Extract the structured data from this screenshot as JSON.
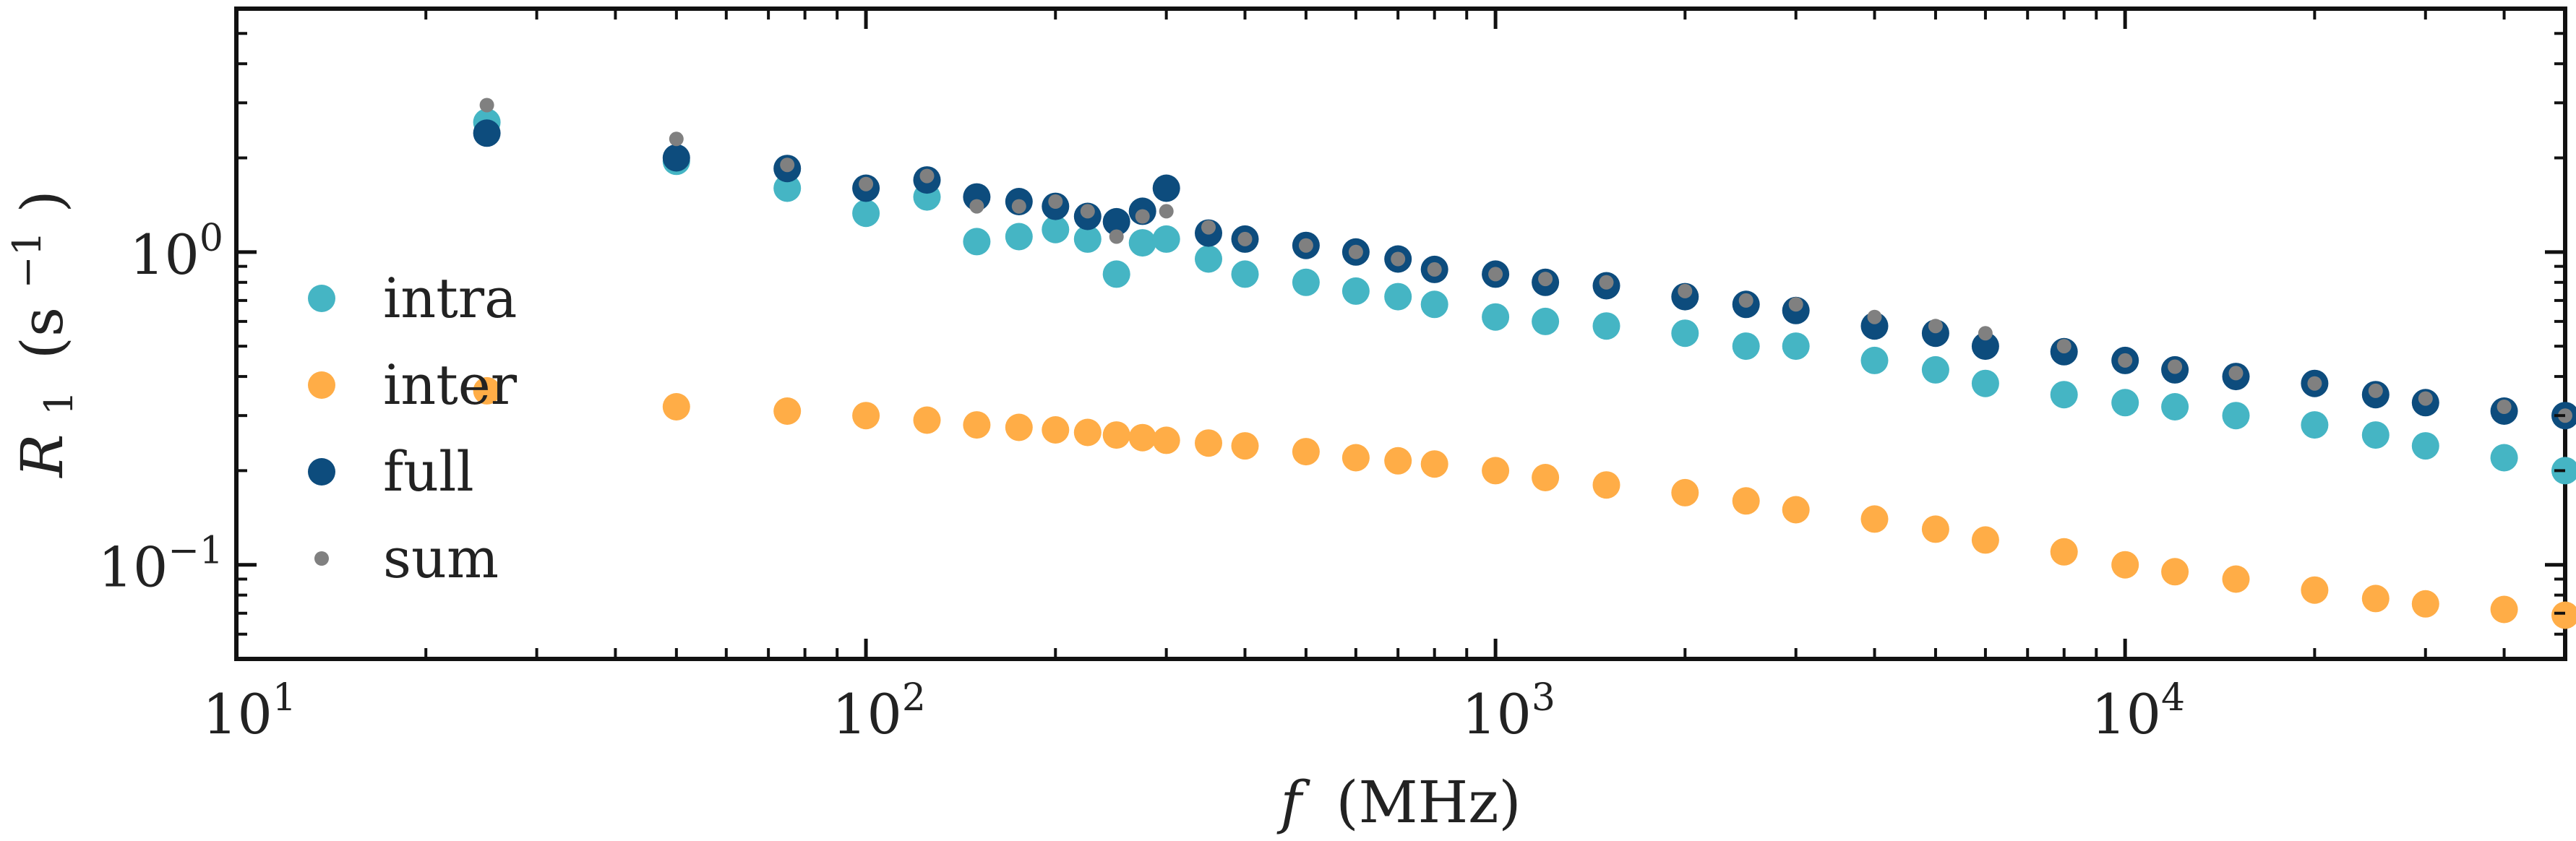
{
  "chart_data": {
    "type": "scatter",
    "xscale": "log",
    "yscale": "log",
    "xlim": [
      10,
      50000
    ],
    "ylim": [
      0.05,
      6
    ],
    "xlabel_var": "f",
    "xlabel_unit": "(MHz)",
    "ylabel_var": "R",
    "ylabel_sub": "1",
    "ylabel_unit_open": "(s",
    "ylabel_unit_exp": "−1",
    "ylabel_unit_close": ")",
    "grid": false,
    "legend_position": "left",
    "xticks": [
      {
        "value": 10,
        "base": "10",
        "exp": "1"
      },
      {
        "value": 100,
        "base": "10",
        "exp": "2"
      },
      {
        "value": 1000,
        "base": "10",
        "exp": "3"
      },
      {
        "value": 10000,
        "base": "10",
        "exp": "4"
      }
    ],
    "yticks": [
      {
        "value": 1,
        "base": "10",
        "exp": "0"
      },
      {
        "value": 0.1,
        "base": "10",
        "exp": "−1"
      }
    ],
    "series": [
      {
        "name": "intra",
        "color": "#45b5c4",
        "marker": "large",
        "x": [
          25,
          50,
          75,
          100,
          125,
          150,
          175,
          200,
          225,
          250,
          275,
          300,
          350,
          400,
          500,
          600,
          700,
          800,
          1000,
          1200,
          1500,
          2000,
          2500,
          3000,
          4000,
          5000,
          6000,
          8000,
          10000,
          12000,
          15000,
          20000,
          25000,
          30000,
          40000,
          50000
        ],
        "y": [
          2.6,
          1.95,
          1.6,
          1.33,
          1.5,
          1.08,
          1.12,
          1.18,
          1.1,
          0.85,
          1.07,
          1.1,
          0.95,
          0.85,
          0.8,
          0.75,
          0.72,
          0.68,
          0.62,
          0.6,
          0.58,
          0.55,
          0.5,
          0.5,
          0.45,
          0.42,
          0.38,
          0.35,
          0.33,
          0.32,
          0.3,
          0.28,
          0.26,
          0.24,
          0.22,
          0.2
        ]
      },
      {
        "name": "inter",
        "color": "#ffad47",
        "marker": "large",
        "x": [
          25,
          50,
          75,
          100,
          125,
          150,
          175,
          200,
          225,
          250,
          275,
          300,
          350,
          400,
          500,
          600,
          700,
          800,
          1000,
          1200,
          1500,
          2000,
          2500,
          3000,
          4000,
          5000,
          6000,
          8000,
          10000,
          12000,
          15000,
          20000,
          25000,
          30000,
          40000,
          50000
        ],
        "y": [
          0.36,
          0.32,
          0.31,
          0.3,
          0.29,
          0.28,
          0.275,
          0.27,
          0.265,
          0.26,
          0.255,
          0.25,
          0.245,
          0.24,
          0.23,
          0.22,
          0.215,
          0.21,
          0.2,
          0.19,
          0.18,
          0.17,
          0.16,
          0.15,
          0.14,
          0.13,
          0.12,
          0.11,
          0.1,
          0.095,
          0.09,
          0.083,
          0.078,
          0.075,
          0.072,
          0.069
        ]
      },
      {
        "name": "full",
        "color": "#0d4c7d",
        "marker": "large",
        "x": [
          25,
          50,
          75,
          100,
          125,
          150,
          175,
          200,
          225,
          250,
          275,
          300,
          350,
          400,
          500,
          600,
          700,
          800,
          1000,
          1200,
          1500,
          2000,
          2500,
          3000,
          4000,
          5000,
          6000,
          8000,
          10000,
          12000,
          15000,
          20000,
          25000,
          30000,
          40000,
          50000
        ],
        "y": [
          2.4,
          2.0,
          1.85,
          1.6,
          1.7,
          1.5,
          1.45,
          1.4,
          1.3,
          1.25,
          1.35,
          1.6,
          1.15,
          1.1,
          1.05,
          1.0,
          0.95,
          0.88,
          0.85,
          0.8,
          0.78,
          0.72,
          0.68,
          0.65,
          0.58,
          0.55,
          0.5,
          0.48,
          0.45,
          0.42,
          0.4,
          0.38,
          0.35,
          0.33,
          0.31,
          0.3
        ]
      },
      {
        "name": "sum",
        "color": "#808080",
        "marker": "small",
        "x": [
          25,
          50,
          75,
          100,
          125,
          150,
          175,
          200,
          225,
          250,
          275,
          300,
          350,
          400,
          500,
          600,
          700,
          800,
          1000,
          1200,
          1500,
          2000,
          2500,
          3000,
          4000,
          5000,
          6000,
          8000,
          10000,
          12000,
          15000,
          20000,
          25000,
          30000,
          40000,
          50000
        ],
        "y": [
          2.95,
          2.3,
          1.9,
          1.65,
          1.75,
          1.4,
          1.4,
          1.45,
          1.35,
          1.12,
          1.3,
          1.35,
          1.2,
          1.1,
          1.05,
          1.0,
          0.95,
          0.88,
          0.85,
          0.82,
          0.8,
          0.75,
          0.7,
          0.68,
          0.62,
          0.58,
          0.55,
          0.5,
          0.45,
          0.43,
          0.41,
          0.38,
          0.36,
          0.34,
          0.32,
          0.3
        ]
      }
    ]
  }
}
